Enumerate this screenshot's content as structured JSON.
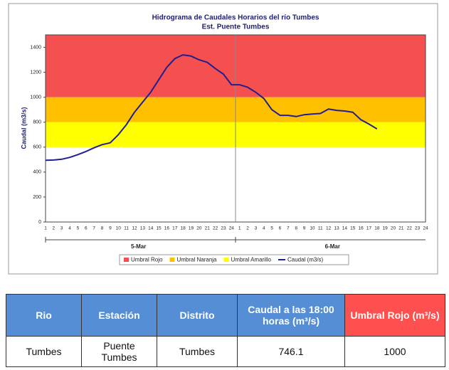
{
  "chart_data": {
    "type": "line",
    "title": "Hidrograma de Caudales Horarios del río Tumbes",
    "subtitle": "Est. Puente Tumbes",
    "y_label": "Caudal  (m3/s)",
    "categories": [
      1,
      2,
      3,
      4,
      5,
      6,
      7,
      8,
      9,
      10,
      11,
      12,
      13,
      14,
      15,
      16,
      17,
      18,
      19,
      20,
      21,
      22,
      23,
      24,
      1,
      2,
      3,
      4,
      5,
      6,
      7,
      8,
      9,
      10,
      11,
      12,
      13,
      14,
      15,
      16,
      17,
      18,
      19,
      20,
      21,
      22,
      23,
      24
    ],
    "x_groups": [
      "5-Mar",
      "6-Mar"
    ],
    "series": [
      {
        "name": "Caudal (m3/s)",
        "color": "#1f1f8f",
        "values": [
          495,
          497,
          503,
          518,
          540,
          565,
          595,
          620,
          635,
          700,
          780,
          880,
          960,
          1040,
          1140,
          1240,
          1310,
          1340,
          1330,
          1300,
          1280,
          1230,
          1185,
          1100,
          1100,
          1080,
          1040,
          990,
          900,
          855,
          855,
          845,
          860,
          865,
          870,
          905,
          895,
          890,
          880,
          820,
          785,
          746.1,
          null,
          null,
          null,
          null,
          null,
          null
        ]
      }
    ],
    "thresholds": [
      {
        "name": "Umbral Rojo",
        "color": "#f4504f",
        "from": 1000,
        "to": 1500
      },
      {
        "name": "Umbral Naranja",
        "color": "#ffc000",
        "from": 800,
        "to": 1000
      },
      {
        "name": "Umbral Amarillo",
        "color": "#ffff00",
        "from": 600,
        "to": 800
      }
    ],
    "ylim": [
      0,
      1500
    ],
    "yticks": [
      0,
      200,
      400,
      600,
      800,
      1000,
      1200,
      1400
    ],
    "grid": false
  },
  "table": {
    "header": [
      "Rio",
      "Estación",
      "Distrito",
      "Caudal a las 18:00 horas (m³/s)",
      "Umbral Rojo (m³/s)"
    ],
    "rows": [
      [
        "Tumbes",
        "Puente Tumbes",
        "Tumbes",
        "746.1",
        "1000"
      ]
    ]
  }
}
